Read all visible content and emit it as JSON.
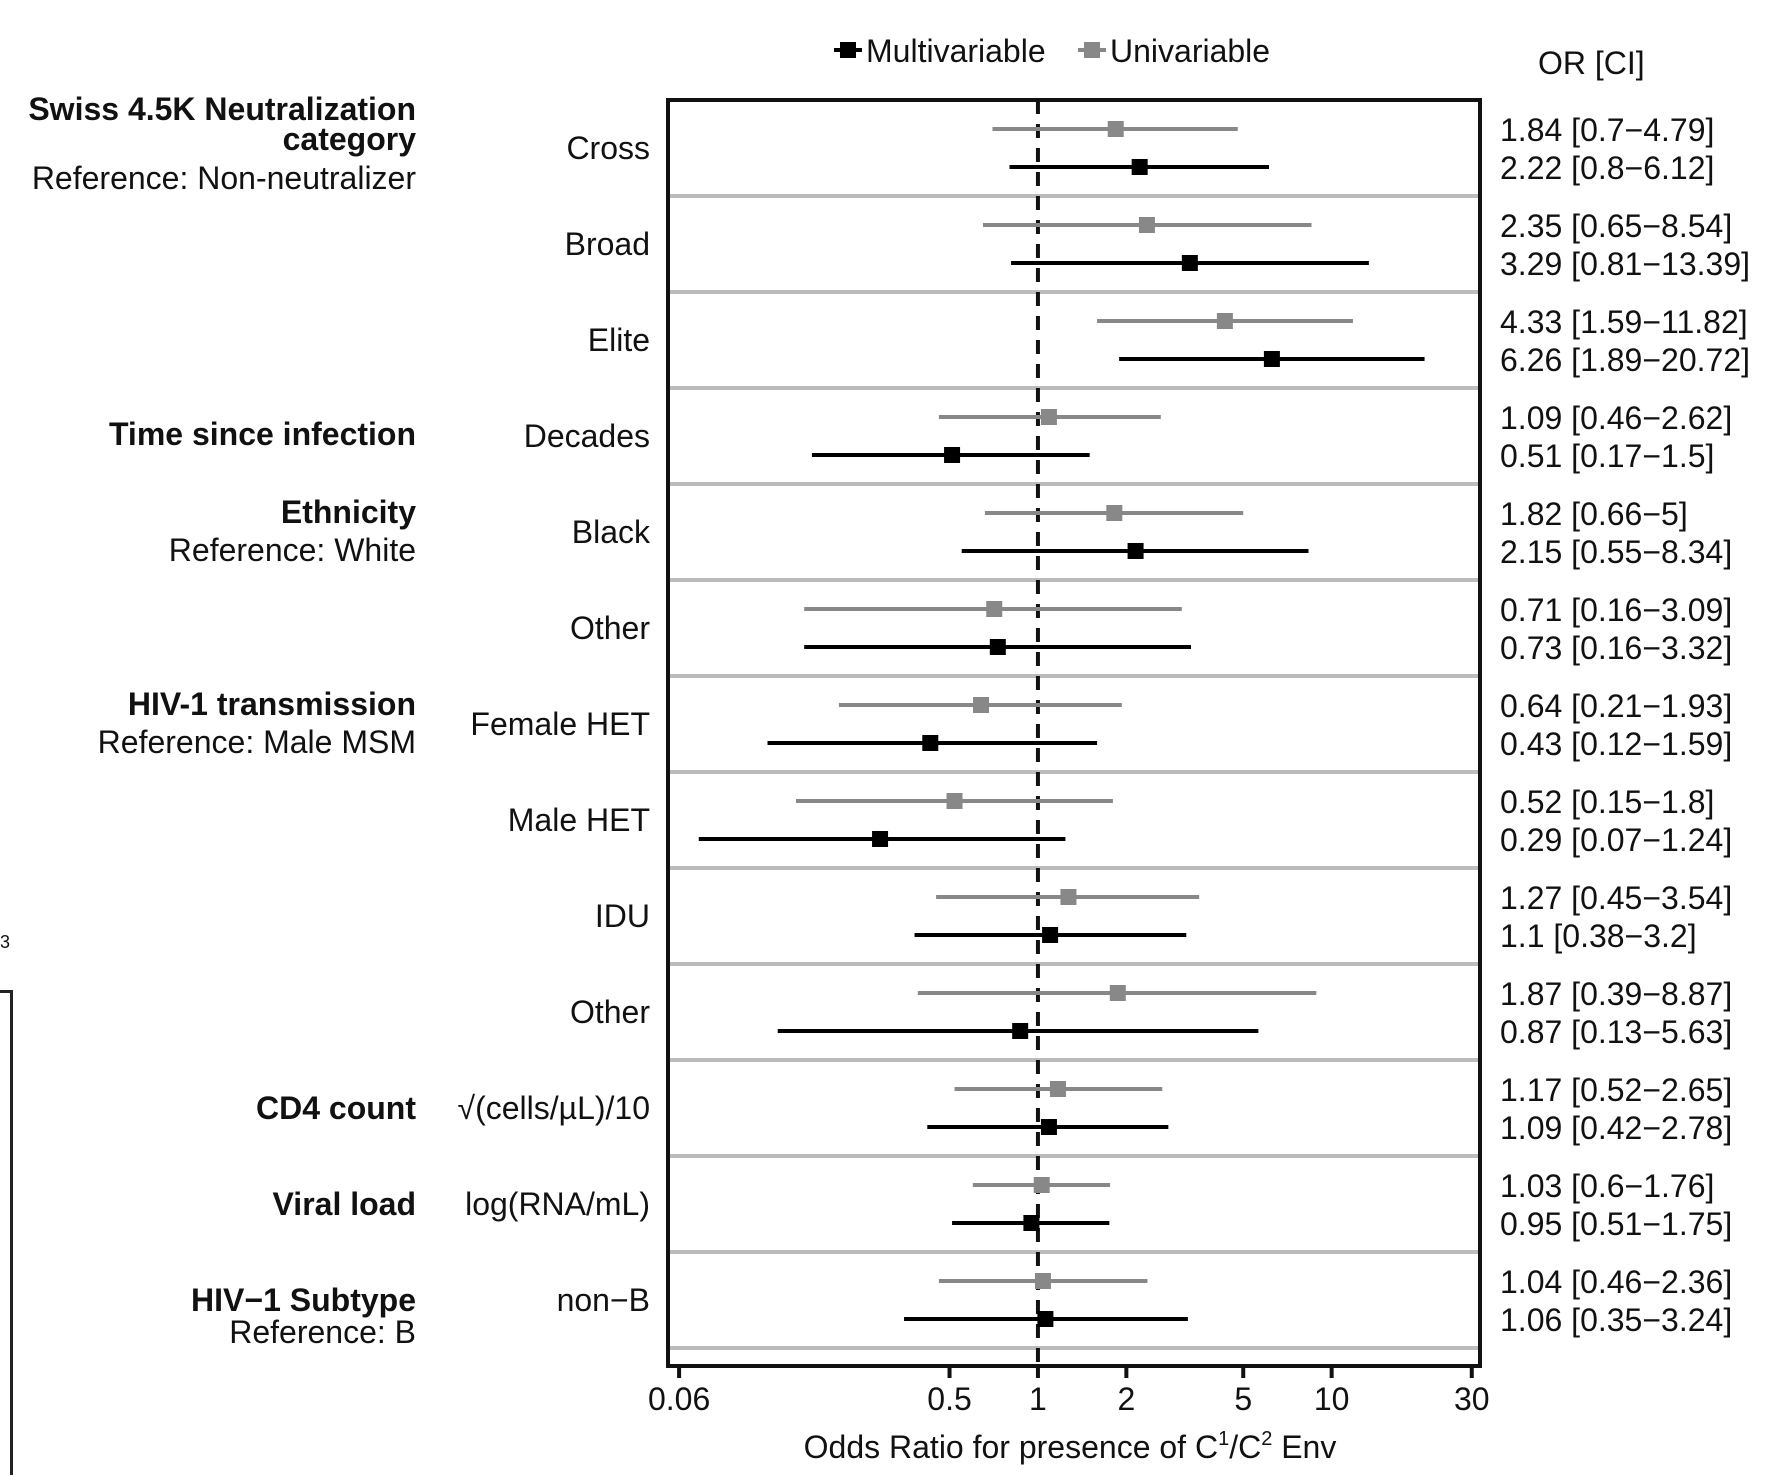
{
  "chart_data": {
    "type": "forest",
    "legend": {
      "placement": "top",
      "entries": [
        {
          "name": "Multivariable",
          "color": "#000000"
        },
        {
          "name": "Univariable",
          "color": "#888888"
        }
      ]
    },
    "or_column_header": "OR [CI]",
    "xlabel_main": "Odds Ratio for presence of C",
    "xlabel_sup1": "1",
    "xlabel_mid": "/C",
    "xlabel_sup2": "2",
    "xlabel_end": " Env",
    "x_scale": "log",
    "xlim": [
      0.055,
      32
    ],
    "reference_line": 1,
    "x_ticks": [
      {
        "value": 0.06,
        "label": "0.06"
      },
      {
        "value": 0.5,
        "label": "0.5"
      },
      {
        "value": 1,
        "label": "1"
      },
      {
        "value": 2,
        "label": "2"
      },
      {
        "value": 5,
        "label": "5"
      },
      {
        "value": 10,
        "label": "10"
      },
      {
        "value": 30,
        "label": "30"
      }
    ],
    "groups": [
      {
        "title_line1": "Swiss 4.5K Neutralization",
        "title_line2": "category",
        "subtitle": "Reference: Non-neutralizer"
      },
      {
        "title_line1": "Time since infection",
        "title_line2": "",
        "subtitle": ""
      },
      {
        "title_line1": "Ethnicity",
        "title_line2": "",
        "subtitle": "Reference: White"
      },
      {
        "title_line1": "HIV-1 transmission",
        "title_line2": "",
        "subtitle": "Reference: Male MSM"
      },
      {
        "title_line1": "CD4 count",
        "title_line2": "",
        "subtitle": ""
      },
      {
        "title_line1": "Viral load",
        "title_line2": "",
        "subtitle": ""
      },
      {
        "title_line1": "HIV−1 Subtype",
        "title_line2": "",
        "subtitle": "Reference: B"
      }
    ],
    "rows": [
      {
        "label": "Cross",
        "univariable": {
          "or": 1.84,
          "lo": 0.7,
          "hi": 4.79,
          "text": "1.84 [0.7−4.79]"
        },
        "multivariable": {
          "or": 2.22,
          "lo": 0.8,
          "hi": 6.12,
          "text": "2.22 [0.8−6.12]"
        }
      },
      {
        "label": "Broad",
        "univariable": {
          "or": 2.35,
          "lo": 0.65,
          "hi": 8.54,
          "text": "2.35 [0.65−8.54]"
        },
        "multivariable": {
          "or": 3.29,
          "lo": 0.81,
          "hi": 13.39,
          "text": "3.29 [0.81−13.39]"
        }
      },
      {
        "label": "Elite",
        "univariable": {
          "or": 4.33,
          "lo": 1.59,
          "hi": 11.82,
          "text": "4.33 [1.59−11.82]"
        },
        "multivariable": {
          "or": 6.26,
          "lo": 1.89,
          "hi": 20.72,
          "text": "6.26 [1.89−20.72]"
        }
      },
      {
        "label": "Decades",
        "univariable": {
          "or": 1.09,
          "lo": 0.46,
          "hi": 2.62,
          "text": "1.09 [0.46−2.62]"
        },
        "multivariable": {
          "or": 0.51,
          "lo": 0.17,
          "hi": 1.5,
          "text": "0.51 [0.17−1.5]"
        }
      },
      {
        "label": "Black",
        "univariable": {
          "or": 1.82,
          "lo": 0.66,
          "hi": 5,
          "text": "1.82 [0.66−5]"
        },
        "multivariable": {
          "or": 2.15,
          "lo": 0.55,
          "hi": 8.34,
          "text": "2.15 [0.55−8.34]"
        }
      },
      {
        "label": "Other",
        "univariable": {
          "or": 0.71,
          "lo": 0.16,
          "hi": 3.09,
          "text": "0.71 [0.16−3.09]"
        },
        "multivariable": {
          "or": 0.73,
          "lo": 0.16,
          "hi": 3.32,
          "text": "0.73 [0.16−3.32]"
        }
      },
      {
        "label": "Female HET",
        "univariable": {
          "or": 0.64,
          "lo": 0.21,
          "hi": 1.93,
          "text": "0.64 [0.21−1.93]"
        },
        "multivariable": {
          "or": 0.43,
          "lo": 0.12,
          "hi": 1.59,
          "text": "0.43 [0.12−1.59]"
        }
      },
      {
        "label": "Male HET",
        "univariable": {
          "or": 0.52,
          "lo": 0.15,
          "hi": 1.8,
          "text": "0.52 [0.15−1.8]"
        },
        "multivariable": {
          "or": 0.29,
          "lo": 0.07,
          "hi": 1.24,
          "text": "0.29 [0.07−1.24]"
        }
      },
      {
        "label": "IDU",
        "univariable": {
          "or": 1.27,
          "lo": 0.45,
          "hi": 3.54,
          "text": "1.27 [0.45−3.54]"
        },
        "multivariable": {
          "or": 1.1,
          "lo": 0.38,
          "hi": 3.2,
          "text": "1.1 [0.38−3.2]"
        }
      },
      {
        "label": "Other",
        "univariable": {
          "or": 1.87,
          "lo": 0.39,
          "hi": 8.87,
          "text": "1.87 [0.39−8.87]"
        },
        "multivariable": {
          "or": 0.87,
          "lo": 0.13,
          "hi": 5.63,
          "text": "0.87 [0.13−5.63]"
        }
      },
      {
        "label": "√(cells/µL)/10",
        "univariable": {
          "or": 1.17,
          "lo": 0.52,
          "hi": 2.65,
          "text": "1.17 [0.52−2.65]"
        },
        "multivariable": {
          "or": 1.09,
          "lo": 0.42,
          "hi": 2.78,
          "text": "1.09 [0.42−2.78]"
        }
      },
      {
        "label": "log(RNA/mL)",
        "univariable": {
          "or": 1.03,
          "lo": 0.6,
          "hi": 1.76,
          "text": "1.03 [0.6−1.76]"
        },
        "multivariable": {
          "or": 0.95,
          "lo": 0.51,
          "hi": 1.75,
          "text": "0.95 [0.51−1.75]"
        }
      },
      {
        "label": "non−B",
        "univariable": {
          "or": 1.04,
          "lo": 0.46,
          "hi": 2.36,
          "text": "1.04 [0.46−2.36]"
        },
        "multivariable": {
          "or": 1.06,
          "lo": 0.35,
          "hi": 3.24,
          "text": "1.06 [0.35−3.24]"
        }
      }
    ],
    "edge_fragment": "3"
  }
}
